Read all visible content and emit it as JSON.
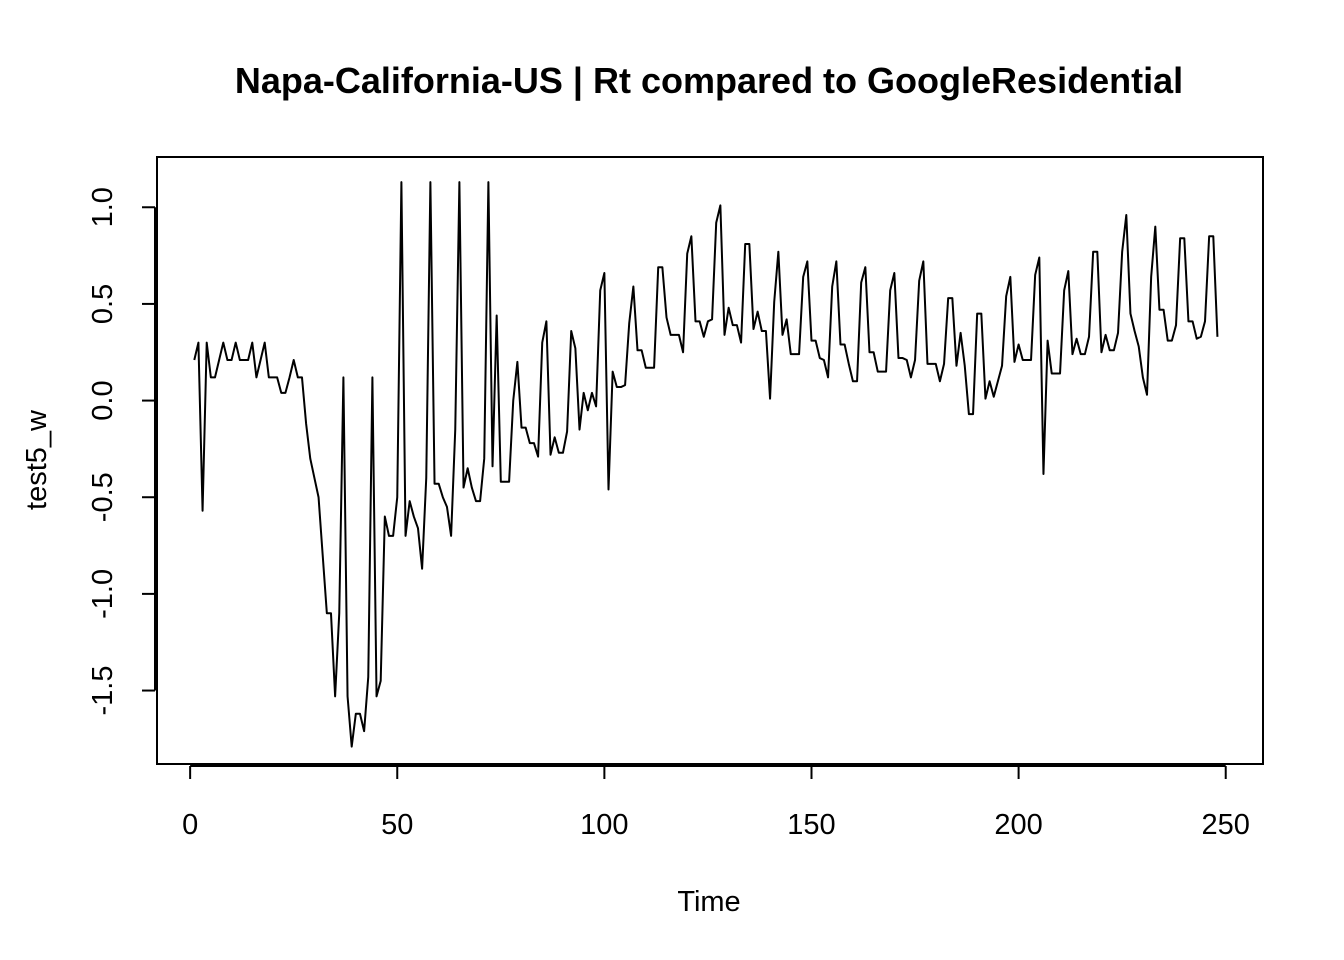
{
  "chart_data": {
    "type": "line",
    "title": "Napa-California-US | Rt compared to GoogleResidential",
    "xlabel": "Time",
    "ylabel": "test5_w",
    "xlim": [
      -8,
      259
    ],
    "ylim": [
      -1.88,
      1.26
    ],
    "xticks": [
      0,
      50,
      100,
      150,
      200,
      250
    ],
    "yticks": [
      -1.5,
      -1.0,
      -0.5,
      0.0,
      0.5,
      1.0
    ],
    "xtick_labels": [
      "0",
      "50",
      "100",
      "150",
      "200",
      "250"
    ],
    "ytick_labels": [
      "-1.5",
      "-1.0",
      "-0.5",
      "0.0",
      "0.5",
      "1.0"
    ],
    "grid": false,
    "legend": "none",
    "line_color": "#000000",
    "series": [
      {
        "x_start": 1,
        "values": [
          0.21,
          0.3,
          -0.57,
          0.3,
          0.12,
          0.12,
          0.21,
          0.3,
          0.21,
          0.21,
          0.3,
          0.21,
          0.21,
          0.21,
          0.3,
          0.12,
          0.21,
          0.3,
          0.12,
          0.12,
          0.12,
          0.04,
          0.04,
          0.12,
          0.21,
          0.12,
          0.12,
          -0.12,
          -0.3,
          -0.4,
          -0.5,
          -0.8,
          -1.1,
          -1.1,
          -1.53,
          -1.1,
          0.12,
          -1.53,
          -1.79,
          -1.62,
          -1.62,
          -1.71,
          -1.43,
          0.12,
          -1.53,
          -1.45,
          -0.6,
          -0.7,
          -0.7,
          -0.5,
          1.13,
          -0.7,
          -0.52,
          -0.6,
          -0.66,
          -0.87,
          -0.4,
          1.13,
          -0.43,
          -0.43,
          -0.5,
          -0.55,
          -0.7,
          -0.15,
          1.13,
          -0.45,
          -0.35,
          -0.45,
          -0.52,
          -0.52,
          -0.3,
          1.13,
          -0.34,
          0.44,
          -0.42,
          -0.42,
          -0.42,
          0.0,
          0.2,
          -0.14,
          -0.14,
          -0.22,
          -0.22,
          -0.29,
          0.3,
          0.41,
          -0.28,
          -0.19,
          -0.27,
          -0.27,
          -0.16,
          0.36,
          0.27,
          -0.15,
          0.04,
          -0.05,
          0.04,
          -0.03,
          0.57,
          0.66,
          -0.46,
          0.15,
          0.07,
          0.07,
          0.08,
          0.4,
          0.59,
          0.26,
          0.26,
          0.17,
          0.17,
          0.17,
          0.69,
          0.69,
          0.43,
          0.34,
          0.34,
          0.34,
          0.25,
          0.76,
          0.85,
          0.41,
          0.41,
          0.33,
          0.41,
          0.42,
          0.92,
          1.01,
          0.34,
          0.48,
          0.39,
          0.39,
          0.3,
          0.81,
          0.81,
          0.37,
          0.46,
          0.36,
          0.36,
          0.01,
          0.51,
          0.77,
          0.34,
          0.42,
          0.24,
          0.24,
          0.24,
          0.64,
          0.72,
          0.31,
          0.31,
          0.22,
          0.21,
          0.12,
          0.59,
          0.72,
          0.29,
          0.29,
          0.19,
          0.1,
          0.1,
          0.61,
          0.69,
          0.25,
          0.25,
          0.15,
          0.15,
          0.15,
          0.57,
          0.66,
          0.22,
          0.22,
          0.21,
          0.12,
          0.21,
          0.62,
          0.72,
          0.19,
          0.19,
          0.19,
          0.1,
          0.19,
          0.53,
          0.53,
          0.18,
          0.35,
          0.18,
          -0.07,
          -0.07,
          0.45,
          0.45,
          0.01,
          0.1,
          0.02,
          0.1,
          0.18,
          0.54,
          0.64,
          0.2,
          0.29,
          0.21,
          0.21,
          0.21,
          0.65,
          0.74,
          -0.38,
          0.31,
          0.14,
          0.14,
          0.14,
          0.57,
          0.67,
          0.24,
          0.32,
          0.24,
          0.24,
          0.33,
          0.77,
          0.77,
          0.25,
          0.34,
          0.26,
          0.26,
          0.35,
          0.77,
          0.96,
          0.45,
          0.36,
          0.28,
          0.12,
          0.03,
          0.64,
          0.9,
          0.47,
          0.47,
          0.31,
          0.31,
          0.39,
          0.84,
          0.84,
          0.41,
          0.41,
          0.32,
          0.33,
          0.41,
          0.85,
          0.85,
          0.33
        ]
      }
    ]
  }
}
